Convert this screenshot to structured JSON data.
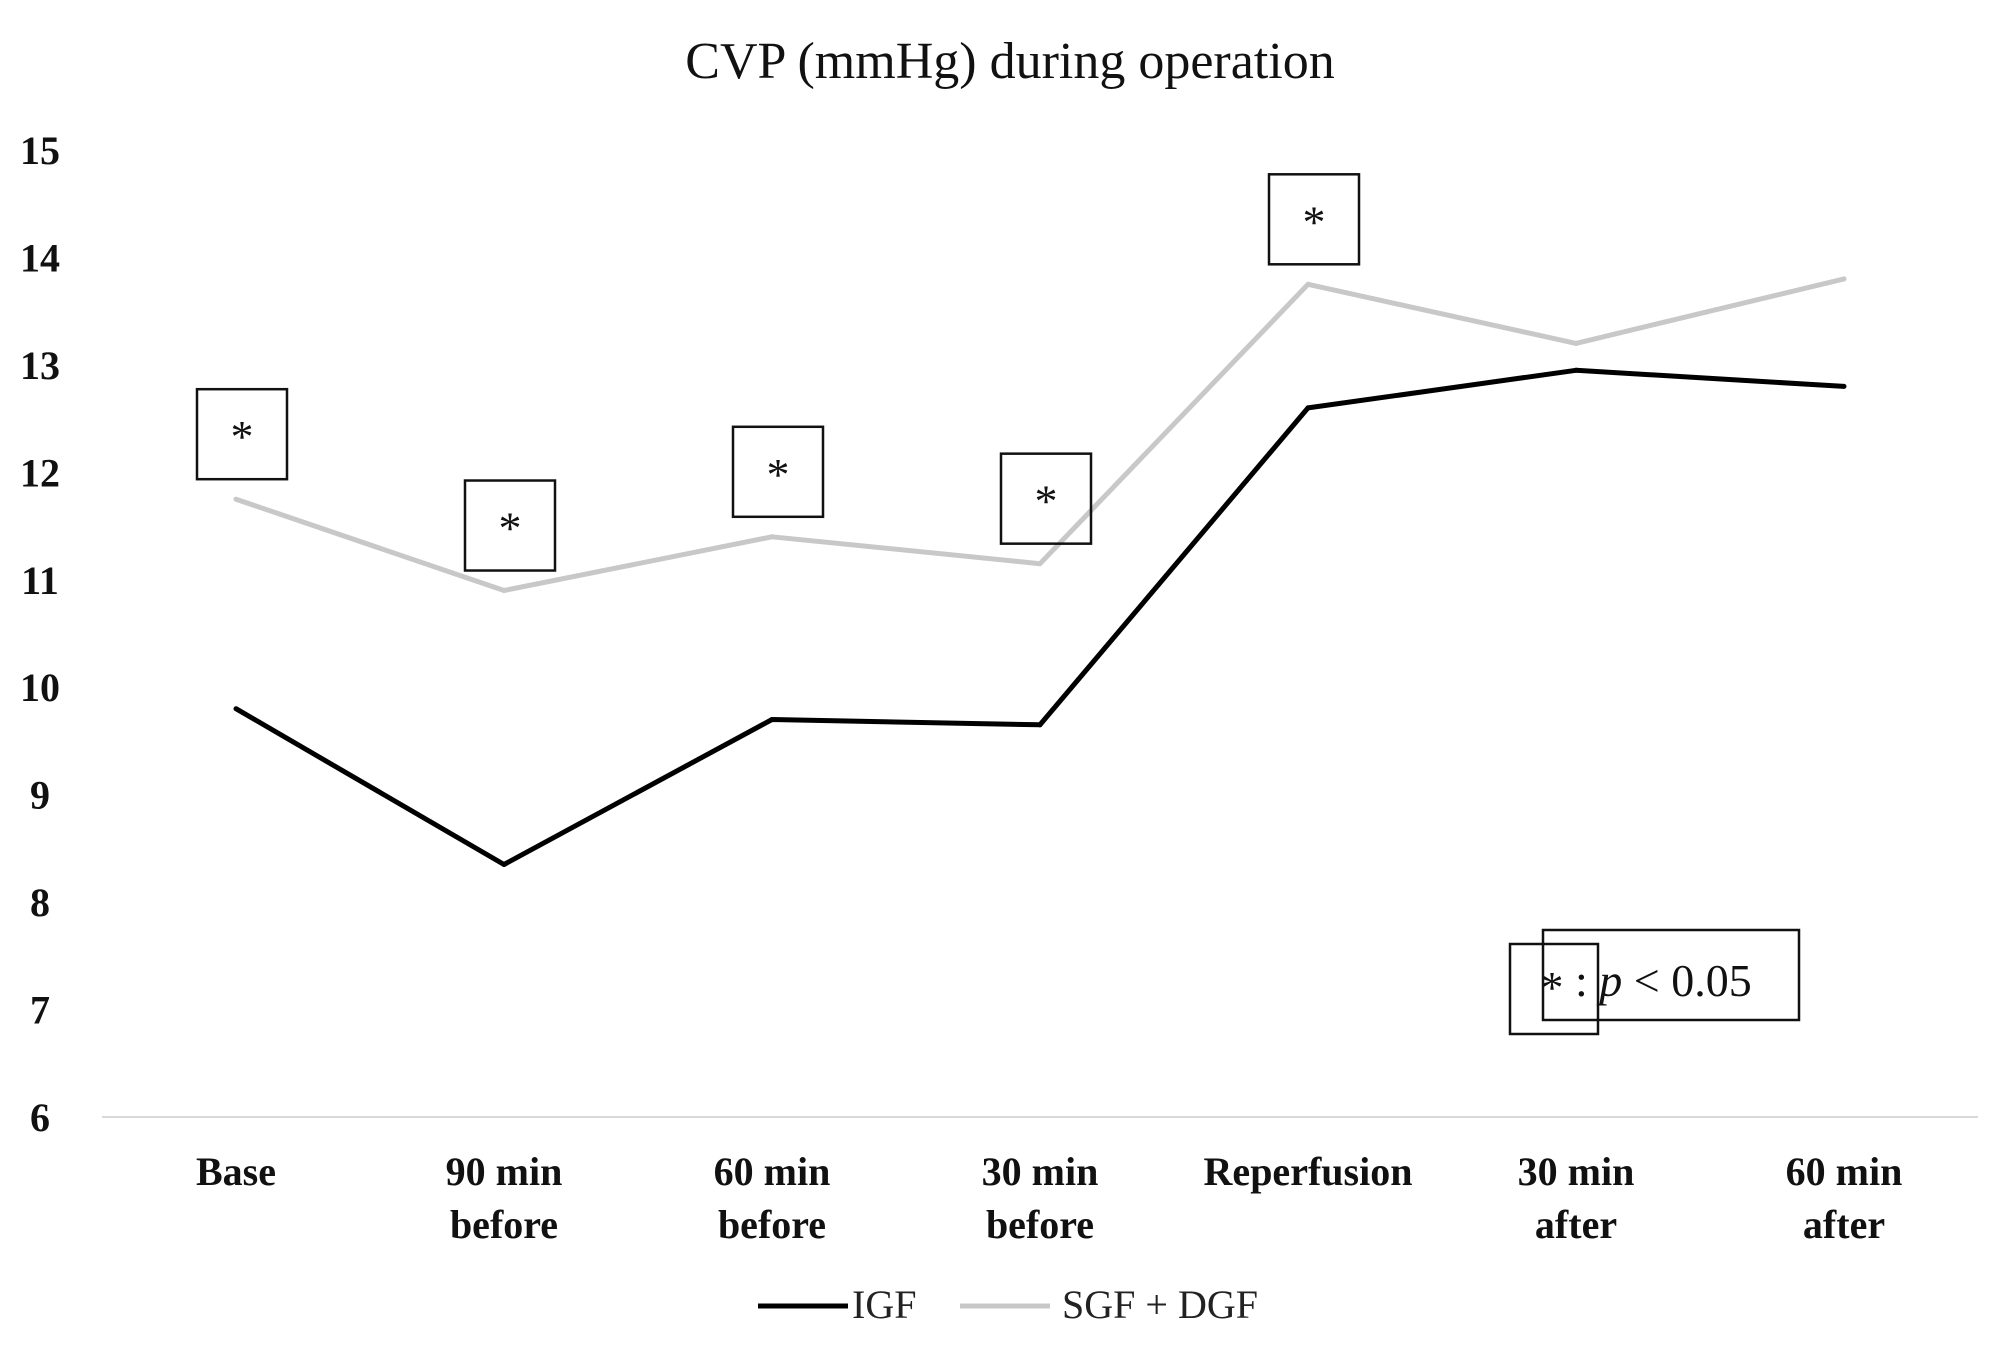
{
  "chart_data": {
    "type": "line",
    "title": "CVP (mmHg) during operation",
    "xlabel": "",
    "ylabel": "",
    "ylim": [
      6,
      15
    ],
    "yticks": [
      "15",
      "14",
      "13",
      "12",
      "11",
      "10",
      "9",
      "8",
      "7",
      "6"
    ],
    "categories": [
      [
        "Base"
      ],
      [
        "90 min",
        "before"
      ],
      [
        "60 min",
        "before"
      ],
      [
        "30 min",
        "before"
      ],
      [
        "Reperfusion"
      ],
      [
        "30 min",
        "after"
      ],
      [
        "60 min",
        "after"
      ]
    ],
    "series": [
      {
        "name": "IGF",
        "color": "#000000",
        "values": [
          9.8,
          8.35,
          9.7,
          9.65,
          12.6,
          12.95,
          12.8
        ]
      },
      {
        "name": "SGF + DGF",
        "color": "#c8c8c8",
        "values": [
          11.75,
          10.9,
          11.4,
          11.15,
          13.75,
          13.2,
          13.8
        ]
      }
    ],
    "significance_markers": [
      "*",
      "*",
      "*",
      "*",
      "*"
    ],
    "significant_indices": [
      0,
      1,
      2,
      3,
      4
    ],
    "significance_note": {
      "symbol": "*",
      "separator": ":",
      "p_symbol": "p",
      "text": "< 0.05"
    },
    "grid": false,
    "legend_position": "bottom-center"
  }
}
